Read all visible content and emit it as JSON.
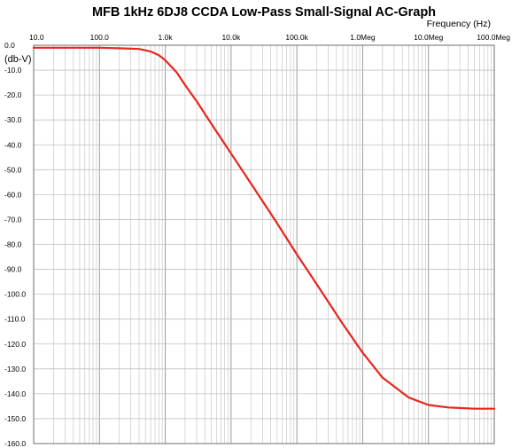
{
  "chart_data": {
    "type": "line",
    "title": "MFB 1kHz 6DJ8 CCDA Low-Pass Small-Signal AC-Graph",
    "xlabel": "Frequency  (Hz)",
    "ylabel": "(db-V)",
    "x_scale": "log",
    "xlim": [
      10,
      100000000
    ],
    "ylim": [
      -160,
      0
    ],
    "x_ticks": [
      10,
      100,
      1000,
      10000,
      100000,
      1000000,
      10000000,
      100000000
    ],
    "x_tick_labels": [
      "10.0",
      "100.0",
      "1.0k",
      "10.0k",
      "100.0k",
      "1.0Meg",
      "10.0Meg",
      "100.0Meg"
    ],
    "y_ticks": [
      0,
      -10,
      -20,
      -30,
      -40,
      -50,
      -60,
      -70,
      -80,
      -90,
      -100,
      -110,
      -120,
      -130,
      -140,
      -150,
      -160
    ],
    "y_tick_labels": [
      "0.0",
      "-10.0",
      "-20.0",
      "-30.0",
      "-40.0",
      "-50.0",
      "-60.0",
      "-70.0",
      "-80.0",
      "-90.0",
      "-100.0",
      "-110.0",
      "-120.0",
      "-130.0",
      "-140.0",
      "-150.0",
      "-160.0"
    ],
    "grid": true,
    "line_color": "#e8261c",
    "series": [
      {
        "x": [
          10,
          100,
          200,
          400,
          600,
          800,
          1000,
          1500,
          2000,
          3000,
          5000,
          10000,
          20000,
          50000,
          100000,
          200000,
          500000,
          1000000,
          2000000,
          5000000,
          10000000,
          20000000,
          50000000,
          100000000
        ],
        "y": [
          -1,
          -1,
          -1.2,
          -1.5,
          -2.5,
          -4,
          -6,
          -11,
          -16,
          -22.5,
          -31.5,
          -43.5,
          -55.5,
          -71.5,
          -84,
          -96,
          -112,
          -123.5,
          -133.5,
          -141.5,
          -144.5,
          -145.5,
          -146,
          -146
        ]
      }
    ]
  }
}
